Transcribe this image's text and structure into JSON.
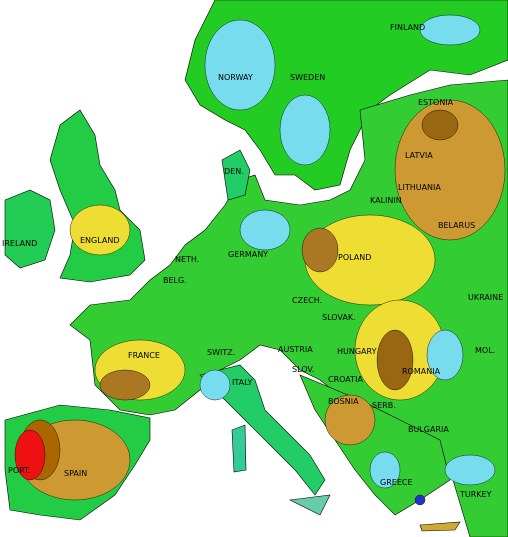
{
  "labels": [
    {
      "text": "FINLAND"
    },
    {
      "text": "NORWAY"
    },
    {
      "text": "SWEDEN"
    },
    {
      "text": "ESTONIA"
    },
    {
      "text": "LATVIA"
    },
    {
      "text": "DEN."
    },
    {
      "text": "LITHUANIA"
    },
    {
      "text": "KALININ"
    },
    {
      "text": "IRELAND"
    },
    {
      "text": "ENGLAND"
    },
    {
      "text": "BELARUS"
    },
    {
      "text": "GERMANY"
    },
    {
      "text": "POLAND"
    },
    {
      "text": "NETH."
    },
    {
      "text": "BELG."
    },
    {
      "text": "CZECH."
    },
    {
      "text": "UKRAINE"
    },
    {
      "text": "SLOVAK."
    },
    {
      "text": "FRANCE"
    },
    {
      "text": "SWITZ."
    },
    {
      "text": "AUSTRIA"
    },
    {
      "text": "HUNGARY"
    },
    {
      "text": "MOL."
    },
    {
      "text": "ROMANIA"
    },
    {
      "text": "SLOV."
    },
    {
      "text": "ITALY"
    },
    {
      "text": "CROATIA"
    },
    {
      "text": "BOSNIA"
    },
    {
      "text": "SERB."
    },
    {
      "text": "BULGARIA"
    },
    {
      "text": "SPAIN"
    },
    {
      "text": "PORT."
    },
    {
      "text": "GREECE"
    },
    {
      "text": "TURKEY"
    }
  ]
}
